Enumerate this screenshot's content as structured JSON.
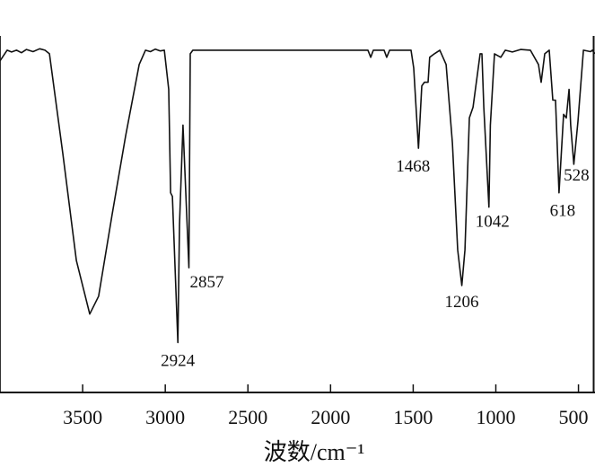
{
  "chart_data": {
    "type": "line",
    "title": "",
    "xlabel": "波数/cm⁻¹",
    "ylabel": "",
    "xlim": [
      4000,
      400
    ],
    "x_reversed": true,
    "ylim": [
      0,
      100
    ],
    "y_units_note_hidden": true,
    "grid": false,
    "legend": "none",
    "line_color": "#111111",
    "xticks": [
      3500,
      3000,
      2500,
      2000,
      1500,
      1000,
      500
    ],
    "xtick_labels": [
      "3500",
      "3000",
      "2500",
      "2000",
      "1500",
      "1000",
      "500"
    ],
    "series": [
      {
        "x": [
          4000,
          3957,
          3930,
          3900,
          3870,
          3840,
          3800,
          3760,
          3728,
          3701,
          3620,
          3538,
          3457,
          3403,
          3321,
          3240,
          3158,
          3120,
          3090,
          3060,
          3030,
          3006,
          2979,
          2968,
          2957,
          2924,
          2914,
          2893,
          2857,
          2849,
          2833,
          2500,
          2000,
          1774,
          1757,
          1741,
          1676,
          1660,
          1643,
          1513,
          1497,
          1468,
          1448,
          1432,
          1410,
          1400,
          1372,
          1339,
          1301,
          1263,
          1231,
          1206,
          1187,
          1160,
          1138,
          1095,
          1084,
          1073,
          1042,
          1033,
          1008,
          970,
          943,
          900,
          850,
          791,
          742,
          726,
          704,
          677,
          655,
          639,
          618,
          590,
          574,
          557,
          547,
          528,
          503,
          470,
          427,
          416,
          400
        ],
        "y": [
          93,
          96,
          95.5,
          96,
          95.3,
          96.2,
          95.6,
          96.4,
          96,
          95,
          67,
          37,
          22,
          27,
          50,
          72,
          92,
          96,
          95.6,
          96.3,
          95.8,
          96,
          85,
          56,
          55,
          14,
          47,
          75,
          35,
          95,
          96,
          96,
          96,
          96,
          94,
          96,
          96,
          94,
          96,
          96,
          91,
          68.5,
          86,
          87,
          87,
          94,
          95,
          96,
          92,
          70,
          40,
          30,
          40,
          77,
          80,
          95,
          95,
          80,
          52,
          75,
          95,
          94,
          96,
          95.5,
          96.2,
          96,
          92,
          87,
          95,
          96,
          82,
          82,
          56,
          78,
          77,
          85,
          75,
          64,
          76,
          96,
          95.6,
          96,
          95
        ]
      }
    ],
    "annotations": [
      {
        "label": "2924",
        "x": 2924,
        "y": 14
      },
      {
        "label": "2857",
        "x": 2857,
        "y": 35
      },
      {
        "label": "1468",
        "x": 1468,
        "y": 68.5
      },
      {
        "label": "1206",
        "x": 1206,
        "y": 30
      },
      {
        "label": "1042",
        "x": 1042,
        "y": 52
      },
      {
        "label": "618",
        "x": 618,
        "y": 56
      },
      {
        "label": "528",
        "x": 528,
        "y": 64
      }
    ]
  }
}
